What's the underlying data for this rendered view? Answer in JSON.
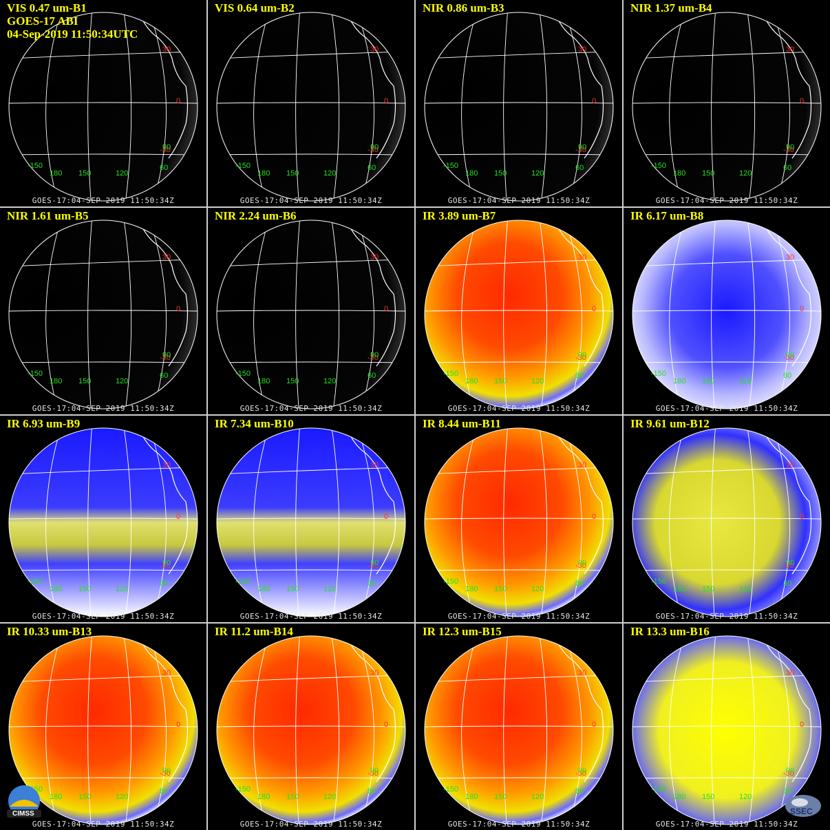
{
  "header": {
    "satellite_line": "GOES-17 ABI",
    "datetime_line": "04-Sep-2019 11:50:34UTC"
  },
  "footer_text": "GOES-17:04-SEP-2019  11:50:34Z",
  "grid_labels": {
    "lat": [
      "30",
      "0",
      "-30"
    ],
    "lon": [
      "-150",
      "180",
      "150",
      "120",
      "60",
      "90"
    ]
  },
  "panels": [
    {
      "title": "VIS 0.47 um-B1",
      "style": "vis"
    },
    {
      "title": "VIS 0.64 um-B2",
      "style": "vis"
    },
    {
      "title": "NIR 0.86 um-B3",
      "style": "vis"
    },
    {
      "title": "NIR 1.37 um-B4",
      "style": "vis"
    },
    {
      "title": "NIR 1.61 um-B5",
      "style": "vis"
    },
    {
      "title": "NIR 2.24 um-B6",
      "style": "vis"
    },
    {
      "title": "IR 3.89 um-B7",
      "style": "ir_warm"
    },
    {
      "title": "IR 6.17 um-B8",
      "style": "wv_light"
    },
    {
      "title": "IR 6.93 um-B9",
      "style": "wv"
    },
    {
      "title": "IR 7.34 um-B10",
      "style": "wv"
    },
    {
      "title": "IR 8.44 um-B11",
      "style": "ir_warm"
    },
    {
      "title": "IR 9.61 um-B12",
      "style": "ozone"
    },
    {
      "title": "IR 10.33 um-B13",
      "style": "ir_warm"
    },
    {
      "title": "IR 11.2 um-B14",
      "style": "ir_warm"
    },
    {
      "title": "IR 12.3 um-B15",
      "style": "ir_warm"
    },
    {
      "title": "IR 13.3 um-B16",
      "style": "co2"
    }
  ],
  "logos": {
    "left": "CIMSS",
    "right": "SSEC"
  },
  "colors": {
    "title": "#ffff00",
    "grid_line": "#ffffff",
    "lat_label": "#ff3030",
    "lon_label": "#22e022"
  }
}
